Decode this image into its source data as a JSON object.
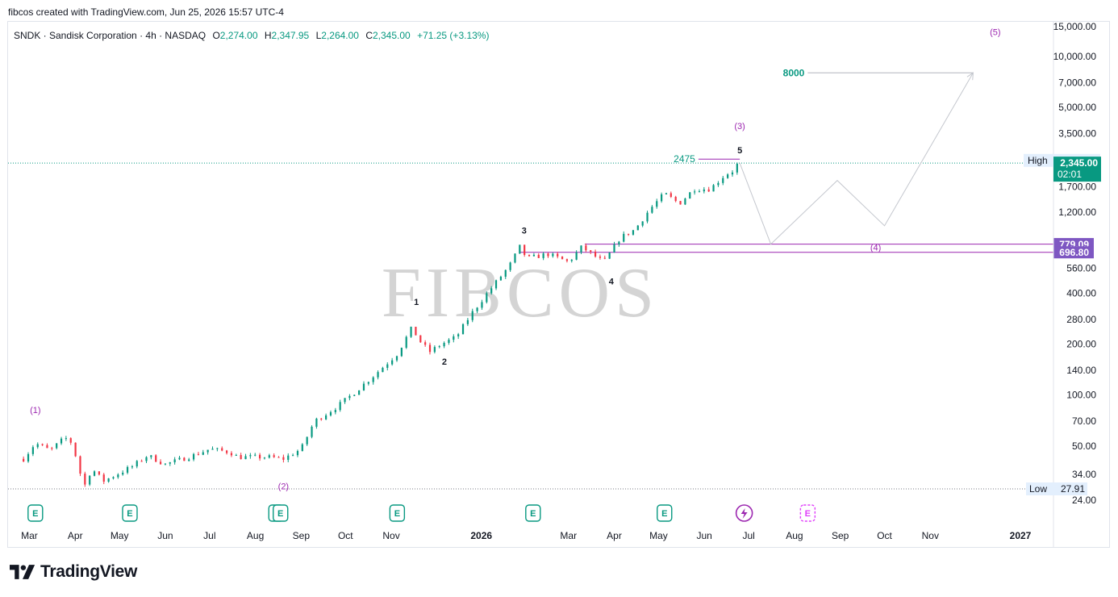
{
  "header": {
    "attribution": "fibcos created with TradingView.com, Jun 25, 2026 15:57 UTC-4"
  },
  "legend": {
    "symbol": "SNDK · Sandisk Corporation · 4h · NASDAQ",
    "open_label": "O",
    "open": "2,274.00",
    "high_label": "H",
    "high": "2,347.95",
    "low_label": "L",
    "low": "2,264.00",
    "close_label": "C",
    "close": "2,345.00",
    "change": "+71.25 (+3.13%)"
  },
  "watermark": "FIBCOS",
  "brand": {
    "name": "TradingView",
    "logo_icon": "tradingview-logo-icon"
  },
  "colors": {
    "up": "#089981",
    "down": "#f23645",
    "purple": "#9c27b0",
    "level_box": "#7e57c2",
    "teal": "#089981",
    "grid": "#e0e3eb"
  },
  "chart_data": {
    "type": "candlestick",
    "title": "SNDK · Sandisk Corporation · 4h · NASDAQ",
    "scale": "log",
    "ylim": [
      22,
      16500
    ],
    "price_ticks": [
      "15,000.00",
      "10,000.00",
      "7,000.00",
      "5,000.00",
      "3,500.00",
      "1,700.00",
      "1,200.00",
      "560.00",
      "400.00",
      "280.00",
      "200.00",
      "140.00",
      "100.00",
      "70.00",
      "50.00",
      "34.00",
      "24.00"
    ],
    "x_ticks": [
      "Mar",
      "Apr",
      "May",
      "Jun",
      "Jul",
      "Aug",
      "Sep",
      "Oct",
      "Nov",
      "2026",
      "Mar",
      "Apr",
      "May",
      "Jun",
      "Jul",
      "Aug",
      "Sep",
      "Oct",
      "Nov",
      "2027"
    ],
    "x_tick_bold": [
      false,
      false,
      false,
      false,
      false,
      false,
      false,
      false,
      false,
      true,
      false,
      false,
      false,
      false,
      false,
      false,
      false,
      false,
      false,
      true
    ],
    "price_path": [
      [
        "2025-02-25",
        42
      ],
      [
        "2025-03-05",
        52
      ],
      [
        "2025-03-15",
        47
      ],
      [
        "2025-03-25",
        56
      ],
      [
        "2025-03-30",
        52
      ],
      [
        "2025-04-05",
        33
      ],
      [
        "2025-04-08",
        29
      ],
      [
        "2025-04-12",
        37
      ],
      [
        "2025-04-20",
        31
      ],
      [
        "2025-05-10",
        38
      ],
      [
        "2025-05-20",
        44
      ],
      [
        "2025-06-01",
        39
      ],
      [
        "2025-06-20",
        44
      ],
      [
        "2025-07-01",
        48
      ],
      [
        "2025-07-15",
        46
      ],
      [
        "2025-07-20",
        43
      ],
      [
        "2025-08-10",
        43
      ],
      [
        "2025-08-20",
        42
      ],
      [
        "2025-09-01",
        48
      ],
      [
        "2025-09-10",
        70
      ],
      [
        "2025-09-25",
        85
      ],
      [
        "2025-10-05",
        100
      ],
      [
        "2025-10-20",
        130
      ],
      [
        "2025-11-05",
        175
      ],
      [
        "2025-11-15",
        250
      ],
      [
        "2025-11-20",
        210
      ],
      [
        "2025-11-27",
        180
      ],
      [
        "2025-12-05",
        200
      ],
      [
        "2025-12-15",
        220
      ],
      [
        "2025-12-25",
        300
      ],
      [
        "2026-01-05",
        400
      ],
      [
        "2026-01-20",
        580
      ],
      [
        "2026-01-27",
        750
      ],
      [
        "2026-02-01",
        640
      ],
      [
        "2026-02-15",
        680
      ],
      [
        "2026-03-01",
        610
      ],
      [
        "2026-03-10",
        750
      ],
      [
        "2026-03-20",
        650
      ],
      [
        "2026-03-25",
        610
      ],
      [
        "2026-04-05",
        850
      ],
      [
        "2026-04-15",
        950
      ],
      [
        "2026-04-25",
        1250
      ],
      [
        "2026-05-05",
        1550
      ],
      [
        "2026-05-15",
        1350
      ],
      [
        "2026-05-25",
        1650
      ],
      [
        "2026-06-05",
        1650
      ],
      [
        "2026-06-15",
        2000
      ],
      [
        "2026-06-20",
        2100
      ],
      [
        "2026-06-24",
        2345
      ]
    ],
    "projection": [
      [
        "2026-06-25",
        2345
      ],
      [
        "2026-07-16",
        779.09
      ],
      [
        "2026-08-30",
        1850
      ],
      [
        "2026-10-01",
        1000
      ],
      [
        "2026-11-30",
        8000
      ]
    ],
    "levels": [
      {
        "price": 779.09,
        "label": "779.09",
        "from": "2026-03-12"
      },
      {
        "price": 696.8,
        "label": "696.80",
        "from": "2026-01-27"
      },
      {
        "price": 2475,
        "label": "2475",
        "from": "2026-05-28",
        "to": "2026-06-25"
      }
    ],
    "target": {
      "price": 8000,
      "label": "8000",
      "from": "2026-08-10",
      "to": "2026-11-30"
    },
    "markers": {
      "high": {
        "label": "High",
        "value": "2,353.48",
        "price": 2353.48
      },
      "low": {
        "label": "Low",
        "value": "27.91",
        "price": 27.91
      },
      "last": {
        "value": "2,345.00",
        "countdown": "02:01",
        "price": 2345
      }
    },
    "wave_labels": [
      {
        "text": "(1)",
        "date": "2025-03-05",
        "price": 82,
        "color": "purple"
      },
      {
        "text": "(2)",
        "date": "2025-08-20",
        "price": 29,
        "color": "purple"
      },
      {
        "text": "(3)",
        "date": "2026-06-25",
        "price": 3900,
        "color": "purple"
      },
      {
        "text": "(4)",
        "date": "2026-09-25",
        "price": 745,
        "color": "purple"
      },
      {
        "text": "(5)",
        "date": "2026-12-15",
        "price": 14000,
        "color": "purple"
      },
      {
        "text": "1",
        "date": "2025-11-18",
        "price": 355,
        "color": "black"
      },
      {
        "text": "2",
        "date": "2025-12-07",
        "price": 158,
        "color": "black"
      },
      {
        "text": "3",
        "date": "2026-01-30",
        "price": 940,
        "color": "black"
      },
      {
        "text": "4",
        "date": "2026-03-30",
        "price": 470,
        "color": "black"
      },
      {
        "text": "5",
        "date": "2026-06-25",
        "price": 2800,
        "color": "black"
      }
    ],
    "event_markers": [
      {
        "date": "2025-03-05",
        "icon": "earnings-icon"
      },
      {
        "date": "2025-05-08",
        "icon": "earnings-icon"
      },
      {
        "date": "2025-08-15",
        "icon": "earnings-icon"
      },
      {
        "date": "2025-08-18",
        "icon": "earnings-icon"
      },
      {
        "date": "2025-11-05",
        "icon": "earnings-icon"
      },
      {
        "date": "2026-02-05",
        "icon": "earnings-icon"
      },
      {
        "date": "2026-05-05",
        "icon": "earnings-icon"
      },
      {
        "date": "2026-06-28",
        "icon": "lightning-icon"
      },
      {
        "date": "2026-08-10",
        "icon": "future-earnings-icon"
      }
    ]
  }
}
